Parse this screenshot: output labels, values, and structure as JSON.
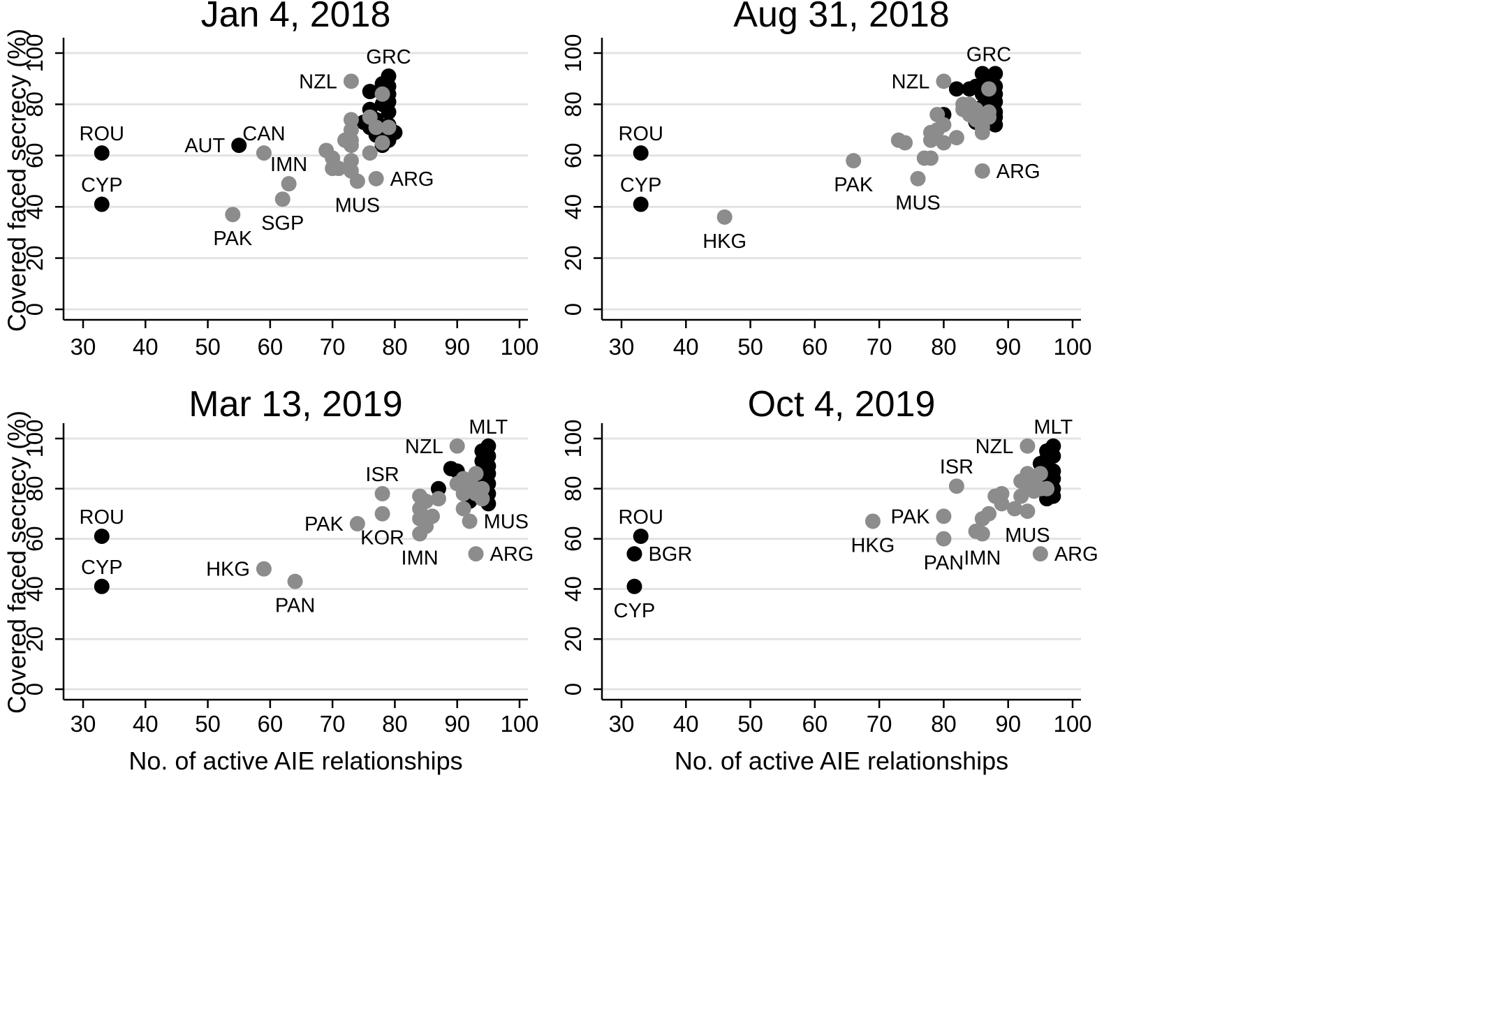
{
  "figure": {
    "y_axis_label": "Covered faced secrecy (%)",
    "x_axis_label": "No. of active AIE relationships"
  },
  "colors": {
    "black_series": "#000000",
    "gray_series": "#8c8c8c",
    "grid": "#e3e3e3"
  },
  "chart_data": [
    {
      "type": "scatter",
      "title": "Jan 4, 2018",
      "xlabel": "",
      "ylabel": "Covered faced secrecy (%)",
      "xlim": [
        30,
        100
      ],
      "ylim": [
        0,
        100
      ],
      "xticks": [
        30,
        40,
        50,
        60,
        70,
        80,
        90,
        100
      ],
      "yticks": [
        0,
        20,
        40,
        60,
        80,
        100
      ],
      "grid": "horizontal",
      "series": [
        {
          "color": "black",
          "points": [
            [
              33,
              61
            ],
            [
              33,
              41
            ],
            [
              55,
              64
            ],
            [
              76,
              85
            ],
            [
              76,
              78
            ],
            [
              76,
              71
            ],
            [
              75,
              73
            ],
            [
              77,
              74
            ],
            [
              77,
              68
            ],
            [
              78,
              88
            ],
            [
              78,
              80
            ],
            [
              78,
              66
            ],
            [
              78,
              64
            ],
            [
              79,
              91
            ],
            [
              79,
              87
            ],
            [
              79,
              84
            ],
            [
              79,
              81
            ],
            [
              79,
              77
            ],
            [
              79,
              72
            ],
            [
              79,
              69
            ],
            [
              79,
              66
            ],
            [
              80,
              69
            ]
          ]
        },
        {
          "color": "gray",
          "points": [
            [
              59,
              61
            ],
            [
              63,
              49
            ],
            [
              62,
              43
            ],
            [
              54,
              37
            ],
            [
              69,
              62
            ],
            [
              70,
              59
            ],
            [
              70,
              55
            ],
            [
              71,
              55
            ],
            [
              72,
              66
            ],
            [
              73,
              89
            ],
            [
              73,
              74
            ],
            [
              73,
              70
            ],
            [
              73,
              66
            ],
            [
              73,
              64
            ],
            [
              73,
              58
            ],
            [
              73,
              54
            ],
            [
              74,
              50
            ],
            [
              76,
              75
            ],
            [
              76,
              61
            ],
            [
              77,
              71
            ],
            [
              77,
              51
            ],
            [
              78,
              84
            ],
            [
              78,
              65
            ],
            [
              79,
              71
            ]
          ]
        }
      ],
      "annotations": [
        {
          "text": "GRC",
          "x": 79,
          "y": 91,
          "pos": "above"
        },
        {
          "text": "NZL",
          "x": 73,
          "y": 89,
          "pos": "left"
        },
        {
          "text": "ROU",
          "x": 33,
          "y": 61,
          "pos": "above"
        },
        {
          "text": "CYP",
          "x": 33,
          "y": 41,
          "pos": "above"
        },
        {
          "text": "AUT",
          "x": 55,
          "y": 64,
          "pos": "left"
        },
        {
          "text": "CAN",
          "x": 59,
          "y": 61,
          "pos": "above"
        },
        {
          "text": "IMN",
          "x": 63,
          "y": 49,
          "pos": "above"
        },
        {
          "text": "SGP",
          "x": 62,
          "y": 43,
          "pos": "below"
        },
        {
          "text": "PAK",
          "x": 54,
          "y": 37,
          "pos": "below"
        },
        {
          "text": "MUS",
          "x": 74,
          "y": 50,
          "pos": "below"
        },
        {
          "text": "ARG",
          "x": 77,
          "y": 51,
          "pos": "right"
        }
      ]
    },
    {
      "type": "scatter",
      "title": "Aug 31, 2018",
      "xlabel": "",
      "ylabel": "",
      "xlim": [
        30,
        100
      ],
      "ylim": [
        0,
        100
      ],
      "xticks": [
        30,
        40,
        50,
        60,
        70,
        80,
        90,
        100
      ],
      "yticks": [
        0,
        20,
        40,
        60,
        80,
        100
      ],
      "grid": "horizontal",
      "series": [
        {
          "color": "black",
          "points": [
            [
              33,
              61
            ],
            [
              33,
              41
            ],
            [
              80,
              76
            ],
            [
              82,
              86
            ],
            [
              84,
              86
            ],
            [
              85,
              87
            ],
            [
              85,
              73
            ],
            [
              86,
              92
            ],
            [
              86,
              84
            ],
            [
              86,
              79
            ],
            [
              86,
              72
            ],
            [
              87,
              90
            ],
            [
              87,
              83
            ],
            [
              88,
              92
            ],
            [
              88,
              87
            ],
            [
              88,
              84
            ],
            [
              88,
              81
            ],
            [
              88,
              77
            ],
            [
              88,
              75
            ],
            [
              88,
              72
            ]
          ]
        },
        {
          "color": "gray",
          "points": [
            [
              46,
              36
            ],
            [
              66,
              58
            ],
            [
              73,
              66
            ],
            [
              74,
              65
            ],
            [
              76,
              51
            ],
            [
              77,
              59
            ],
            [
              78,
              59
            ],
            [
              78,
              66
            ],
            [
              78,
              69
            ],
            [
              79,
              76
            ],
            [
              79,
              70
            ],
            [
              80,
              89
            ],
            [
              80,
              72
            ],
            [
              80,
              65
            ],
            [
              82,
              67
            ],
            [
              83,
              80
            ],
            [
              83,
              78
            ],
            [
              84,
              80
            ],
            [
              84,
              76
            ],
            [
              85,
              78
            ],
            [
              85,
              74
            ],
            [
              86,
              71
            ],
            [
              86,
              69
            ],
            [
              86,
              54
            ],
            [
              87,
              86
            ],
            [
              87,
              77
            ],
            [
              87,
              75
            ]
          ]
        }
      ],
      "annotations": [
        {
          "text": "GRC",
          "x": 87,
          "y": 92,
          "pos": "above"
        },
        {
          "text": "NZL",
          "x": 80,
          "y": 89,
          "pos": "left"
        },
        {
          "text": "ROU",
          "x": 33,
          "y": 61,
          "pos": "above"
        },
        {
          "text": "CYP",
          "x": 33,
          "y": 41,
          "pos": "above"
        },
        {
          "text": "PAK",
          "x": 66,
          "y": 58,
          "pos": "below"
        },
        {
          "text": "MUS",
          "x": 76,
          "y": 51,
          "pos": "below"
        },
        {
          "text": "ARG",
          "x": 86,
          "y": 54,
          "pos": "right"
        },
        {
          "text": "HKG",
          "x": 46,
          "y": 36,
          "pos": "below"
        }
      ]
    },
    {
      "type": "scatter",
      "title": "Mar 13, 2019",
      "xlabel": "No. of active AIE relationships",
      "ylabel": "Covered faced secrecy (%)",
      "xlim": [
        30,
        100
      ],
      "ylim": [
        0,
        100
      ],
      "xticks": [
        30,
        40,
        50,
        60,
        70,
        80,
        90,
        100
      ],
      "yticks": [
        0,
        20,
        40,
        60,
        80,
        100
      ],
      "grid": "horizontal",
      "series": [
        {
          "color": "black",
          "points": [
            [
              33,
              61
            ],
            [
              33,
              41
            ],
            [
              87,
              80
            ],
            [
              89,
              88
            ],
            [
              90,
              87
            ],
            [
              92,
              75
            ],
            [
              94,
              95
            ],
            [
              94,
              91
            ],
            [
              94,
              87
            ],
            [
              94,
              83
            ],
            [
              94,
              78
            ],
            [
              95,
              97
            ],
            [
              95,
              93
            ],
            [
              95,
              89
            ],
            [
              95,
              86
            ],
            [
              95,
              82
            ],
            [
              95,
              78
            ],
            [
              95,
              74
            ]
          ]
        },
        {
          "color": "gray",
          "points": [
            [
              59,
              48
            ],
            [
              64,
              43
            ],
            [
              74,
              66
            ],
            [
              78,
              78
            ],
            [
              78,
              70
            ],
            [
              84,
              77
            ],
            [
              84,
              72
            ],
            [
              84,
              68
            ],
            [
              84,
              62
            ],
            [
              85,
              75
            ],
            [
              85,
              65
            ],
            [
              86,
              69
            ],
            [
              87,
              76
            ],
            [
              90,
              97
            ],
            [
              90,
              82
            ],
            [
              91,
              84
            ],
            [
              91,
              78
            ],
            [
              91,
              72
            ],
            [
              92,
              81
            ],
            [
              92,
              67
            ],
            [
              93,
              86
            ],
            [
              93,
              80
            ],
            [
              93,
              78
            ],
            [
              93,
              54
            ],
            [
              94,
              80
            ],
            [
              94,
              76
            ]
          ]
        }
      ],
      "annotations": [
        {
          "text": "MLT",
          "x": 95,
          "y": 97,
          "pos": "above"
        },
        {
          "text": "NZL",
          "x": 90,
          "y": 97,
          "pos": "left"
        },
        {
          "text": "ISR",
          "x": 78,
          "y": 78,
          "pos": "above"
        },
        {
          "text": "ROU",
          "x": 33,
          "y": 61,
          "pos": "above"
        },
        {
          "text": "CYP",
          "x": 33,
          "y": 41,
          "pos": "above"
        },
        {
          "text": "PAK",
          "x": 74,
          "y": 66,
          "pos": "left"
        },
        {
          "text": "KOR",
          "x": 78,
          "y": 70,
          "pos": "below"
        },
        {
          "text": "IMN",
          "x": 84,
          "y": 62,
          "pos": "below"
        },
        {
          "text": "MUS",
          "x": 92,
          "y": 67,
          "pos": "right"
        },
        {
          "text": "ARG",
          "x": 93,
          "y": 54,
          "pos": "right"
        },
        {
          "text": "HKG",
          "x": 59,
          "y": 48,
          "pos": "left"
        },
        {
          "text": "PAN",
          "x": 64,
          "y": 43,
          "pos": "below"
        }
      ]
    },
    {
      "type": "scatter",
      "title": "Oct 4, 2019",
      "xlabel": "No. of active AIE relationships",
      "ylabel": "",
      "xlim": [
        30,
        100
      ],
      "ylim": [
        0,
        100
      ],
      "xticks": [
        30,
        40,
        50,
        60,
        70,
        80,
        90,
        100
      ],
      "yticks": [
        0,
        20,
        40,
        60,
        80,
        100
      ],
      "grid": "horizontal",
      "series": [
        {
          "color": "black",
          "points": [
            [
              33,
              61
            ],
            [
              32,
              54
            ],
            [
              32,
              41
            ],
            [
              95,
              90
            ],
            [
              95,
              86
            ],
            [
              95,
              81
            ],
            [
              96,
              95
            ],
            [
              96,
              92
            ],
            [
              96,
              88
            ],
            [
              96,
              84
            ],
            [
              96,
              80
            ],
            [
              96,
              76
            ],
            [
              97,
              97
            ],
            [
              97,
              93
            ],
            [
              97,
              87
            ],
            [
              97,
              84
            ],
            [
              97,
              80
            ],
            [
              97,
              77
            ]
          ]
        },
        {
          "color": "gray",
          "points": [
            [
              69,
              67
            ],
            [
              80,
              69
            ],
            [
              80,
              60
            ],
            [
              82,
              81
            ],
            [
              85,
              63
            ],
            [
              86,
              68
            ],
            [
              86,
              62
            ],
            [
              87,
              70
            ],
            [
              88,
              77
            ],
            [
              89,
              78
            ],
            [
              89,
              74
            ],
            [
              91,
              72
            ],
            [
              92,
              83
            ],
            [
              92,
              77
            ],
            [
              93,
              97
            ],
            [
              93,
              86
            ],
            [
              93,
              80
            ],
            [
              93,
              71
            ],
            [
              94,
              84
            ],
            [
              94,
              79
            ],
            [
              95,
              86
            ],
            [
              95,
              80
            ],
            [
              95,
              54
            ],
            [
              96,
              80
            ]
          ]
        }
      ],
      "annotations": [
        {
          "text": "MLT",
          "x": 97,
          "y": 97,
          "pos": "above"
        },
        {
          "text": "NZL",
          "x": 93,
          "y": 97,
          "pos": "left"
        },
        {
          "text": "ISR",
          "x": 82,
          "y": 81,
          "pos": "above"
        },
        {
          "text": "ROU",
          "x": 33,
          "y": 61,
          "pos": "above"
        },
        {
          "text": "BGR",
          "x": 32,
          "y": 54,
          "pos": "right"
        },
        {
          "text": "CYP",
          "x": 32,
          "y": 41,
          "pos": "below"
        },
        {
          "text": "PAK",
          "x": 80,
          "y": 69,
          "pos": "left"
        },
        {
          "text": "HKG",
          "x": 69,
          "y": 67,
          "pos": "below"
        },
        {
          "text": "PAN",
          "x": 80,
          "y": 60,
          "pos": "below"
        },
        {
          "text": "IMN",
          "x": 86,
          "y": 62,
          "pos": "below"
        },
        {
          "text": "MUS",
          "x": 93,
          "y": 71,
          "pos": "below"
        },
        {
          "text": "ARG",
          "x": 95,
          "y": 54,
          "pos": "right"
        }
      ]
    }
  ]
}
